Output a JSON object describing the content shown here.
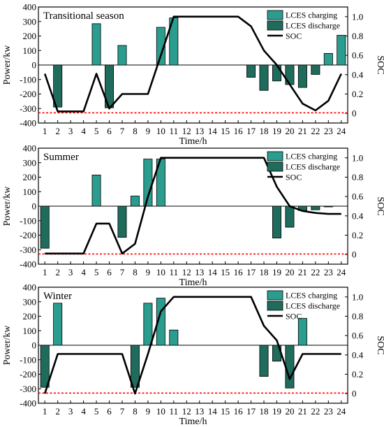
{
  "figure": {
    "colors": {
      "charging": "#2a9d8f",
      "discharge": "#1f6b5c",
      "soc": "#000000",
      "soc_min_line": "#ff0000"
    }
  },
  "chart_data": [
    {
      "type": "bar",
      "title": "Transitional season",
      "xlabel": "Time/h",
      "ylabel": "Power/kw",
      "y2label": "SOC",
      "categories": [
        "1",
        "2",
        "3",
        "4",
        "5",
        "6",
        "7",
        "8",
        "9",
        "10",
        "11",
        "12",
        "13",
        "14",
        "15",
        "16",
        "17",
        "18",
        "19",
        "20",
        "21",
        "22",
        "23",
        "24"
      ],
      "ylim": [
        -400,
        400
      ],
      "yticks": [
        -400,
        -300,
        -200,
        -100,
        0,
        100,
        200,
        300,
        400
      ],
      "y2lim": [
        -0.1,
        1.1
      ],
      "y2ticks": [
        0,
        0.2,
        0.4,
        0.6,
        0.8,
        1.0
      ],
      "y2ticklabels": [
        "0",
        "0.2",
        "0.4",
        "0.6",
        "0.8",
        "1.0"
      ],
      "soc_min_line": -330,
      "legend_position": "top-right",
      "series": [
        {
          "name": "LCES charging",
          "kind": "bar",
          "values": [
            0,
            0,
            0,
            0,
            285,
            0,
            135,
            0,
            0,
            260,
            325,
            0,
            0,
            0,
            0,
            0,
            0,
            0,
            0,
            0,
            0,
            0,
            80,
            205
          ]
        },
        {
          "name": "LCES discharge",
          "kind": "bar",
          "values": [
            0,
            -290,
            0,
            0,
            0,
            -295,
            0,
            0,
            0,
            0,
            0,
            0,
            0,
            0,
            0,
            0,
            -85,
            -175,
            -110,
            -135,
            -155,
            -65,
            0,
            0
          ]
        },
        {
          "name": "SOC",
          "kind": "line",
          "axis": "right",
          "values": [
            0.41,
            0.02,
            0.02,
            0.02,
            0.41,
            0.05,
            0.2,
            0.2,
            0.2,
            0.6,
            1.0,
            1.0,
            1.0,
            1.0,
            1.0,
            1.0,
            0.9,
            0.65,
            0.5,
            0.3,
            0.1,
            0.03,
            0.13,
            0.41
          ]
        }
      ]
    },
    {
      "type": "bar",
      "title": "Summer",
      "xlabel": "Time/h",
      "ylabel": "Power/kw",
      "y2label": "SOC",
      "categories": [
        "1",
        "2",
        "3",
        "4",
        "5",
        "6",
        "7",
        "8",
        "9",
        "10",
        "11",
        "12",
        "13",
        "14",
        "15",
        "16",
        "17",
        "18",
        "19",
        "20",
        "21",
        "22",
        "23",
        "24"
      ],
      "ylim": [
        -400,
        400
      ],
      "yticks": [
        -400,
        -300,
        -200,
        -100,
        0,
        100,
        200,
        300,
        400
      ],
      "y2lim": [
        -0.1,
        1.1
      ],
      "y2ticks": [
        0,
        0.2,
        0.4,
        0.6,
        0.8,
        1.0
      ],
      "y2ticklabels": [
        "0",
        "0.2",
        "0.4",
        "0.6",
        "0.8",
        "1.0"
      ],
      "soc_min_line": -330,
      "legend_position": "top-right",
      "series": [
        {
          "name": "LCES charging",
          "kind": "bar",
          "values": [
            0,
            0,
            0,
            0,
            215,
            0,
            0,
            70,
            325,
            325,
            0,
            0,
            0,
            0,
            0,
            0,
            0,
            0,
            0,
            0,
            0,
            0,
            0,
            0
          ]
        },
        {
          "name": "LCES discharge",
          "kind": "bar",
          "values": [
            -290,
            0,
            0,
            0,
            0,
            0,
            -215,
            0,
            0,
            0,
            0,
            0,
            0,
            0,
            0,
            0,
            0,
            0,
            -220,
            -145,
            -30,
            -25,
            -5,
            0
          ]
        },
        {
          "name": "SOC",
          "kind": "line",
          "axis": "right",
          "values": [
            0.01,
            0.01,
            0.01,
            0.01,
            0.32,
            0.32,
            0.01,
            0.11,
            0.6,
            1.0,
            1.0,
            1.0,
            1.0,
            1.0,
            1.0,
            1.0,
            1.0,
            1.0,
            0.7,
            0.5,
            0.45,
            0.43,
            0.42,
            0.42
          ]
        }
      ]
    },
    {
      "type": "bar",
      "title": "Winter",
      "xlabel": "Time/h",
      "ylabel": "Power/kw",
      "y2label": "SOC",
      "categories": [
        "1",
        "2",
        "3",
        "4",
        "5",
        "6",
        "7",
        "8",
        "9",
        "10",
        "11",
        "12",
        "13",
        "14",
        "15",
        "16",
        "17",
        "18",
        "19",
        "20",
        "21",
        "22",
        "23",
        "24"
      ],
      "ylim": [
        -400,
        400
      ],
      "yticks": [
        -400,
        -300,
        -200,
        -100,
        0,
        100,
        200,
        300,
        400
      ],
      "y2lim": [
        -0.1,
        1.1
      ],
      "y2ticks": [
        0,
        0.2,
        0.4,
        0.6,
        0.8,
        1.0
      ],
      "y2ticklabels": [
        "0",
        "0.2",
        "0.4",
        "0.6",
        "0.8",
        "1.0"
      ],
      "soc_min_line": -330,
      "legend_position": "top-right",
      "series": [
        {
          "name": "LCES charging",
          "kind": "bar",
          "values": [
            0,
            290,
            0,
            0,
            0,
            0,
            0,
            0,
            290,
            325,
            105,
            0,
            0,
            0,
            0,
            0,
            0,
            0,
            0,
            0,
            185,
            0,
            0,
            0
          ]
        },
        {
          "name": "LCES discharge",
          "kind": "bar",
          "values": [
            -290,
            0,
            0,
            0,
            0,
            0,
            0,
            -290,
            0,
            0,
            0,
            0,
            0,
            0,
            0,
            0,
            0,
            -215,
            -110,
            -295,
            0,
            0,
            0,
            0
          ]
        },
        {
          "name": "SOC",
          "kind": "line",
          "axis": "right",
          "values": [
            0.0,
            0.41,
            0.41,
            0.41,
            0.41,
            0.41,
            0.41,
            0.0,
            0.41,
            0.85,
            1.0,
            1.0,
            1.0,
            1.0,
            1.0,
            1.0,
            1.0,
            0.7,
            0.55,
            0.15,
            0.41,
            0.41,
            0.41,
            0.41
          ]
        }
      ]
    }
  ]
}
